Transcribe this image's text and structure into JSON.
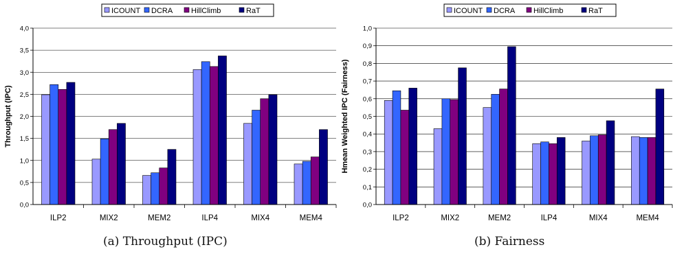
{
  "colors": {
    "ICOUNT": "#9999ff",
    "DCRA": "#3366ff",
    "HillClimb": "#800080",
    "RaT": "#000080"
  },
  "captions": {
    "a": "(a)  Throughput (IPC)",
    "b": "(b)  Fairness"
  },
  "chart_data": [
    {
      "type": "bar",
      "title": "",
      "xlabel": "",
      "ylabel": "Throughput (IPC)",
      "ylim": [
        0,
        4.0
      ],
      "yticks": [
        "0,0",
        "0,5",
        "1,0",
        "1,5",
        "2,0",
        "2,5",
        "3,0",
        "3,5",
        "4,0"
      ],
      "grid": true,
      "legend": "top-center",
      "categories": [
        "ILP2",
        "MIX2",
        "MEM2",
        "ILP4",
        "MIX4",
        "MEM4"
      ],
      "series": [
        {
          "name": "ICOUNT",
          "values": [
            2.49,
            1.03,
            0.66,
            3.06,
            1.84,
            0.92
          ]
        },
        {
          "name": "DCRA",
          "values": [
            2.72,
            1.49,
            0.72,
            3.24,
            2.14,
            0.98
          ]
        },
        {
          "name": "HillClimb",
          "values": [
            2.61,
            1.7,
            0.83,
            3.13,
            2.4,
            1.08
          ]
        },
        {
          "name": "RaT",
          "values": [
            2.77,
            1.84,
            1.25,
            3.37,
            2.49,
            1.7
          ]
        }
      ]
    },
    {
      "type": "bar",
      "title": "",
      "xlabel": "",
      "ylabel": "Hmean Weighted IPC (Fairness)",
      "ylim": [
        0,
        1.0
      ],
      "yticks": [
        "0,0",
        "0,1",
        "0,2",
        "0,3",
        "0,4",
        "0,5",
        "0,6",
        "0,7",
        "0,8",
        "0,9",
        "1,0"
      ],
      "grid": true,
      "legend": "top-center",
      "categories": [
        "ILP2",
        "MIX2",
        "MEM2",
        "ILP4",
        "MIX4",
        "MEM4"
      ],
      "series": [
        {
          "name": "ICOUNT",
          "values": [
            0.59,
            0.43,
            0.55,
            0.345,
            0.36,
            0.385
          ]
        },
        {
          "name": "DCRA",
          "values": [
            0.645,
            0.6,
            0.625,
            0.355,
            0.39,
            0.38
          ]
        },
        {
          "name": "HillClimb",
          "values": [
            0.535,
            0.595,
            0.655,
            0.345,
            0.395,
            0.38
          ]
        },
        {
          "name": "RaT",
          "values": [
            0.66,
            0.775,
            0.895,
            0.38,
            0.475,
            0.655
          ]
        }
      ]
    }
  ]
}
